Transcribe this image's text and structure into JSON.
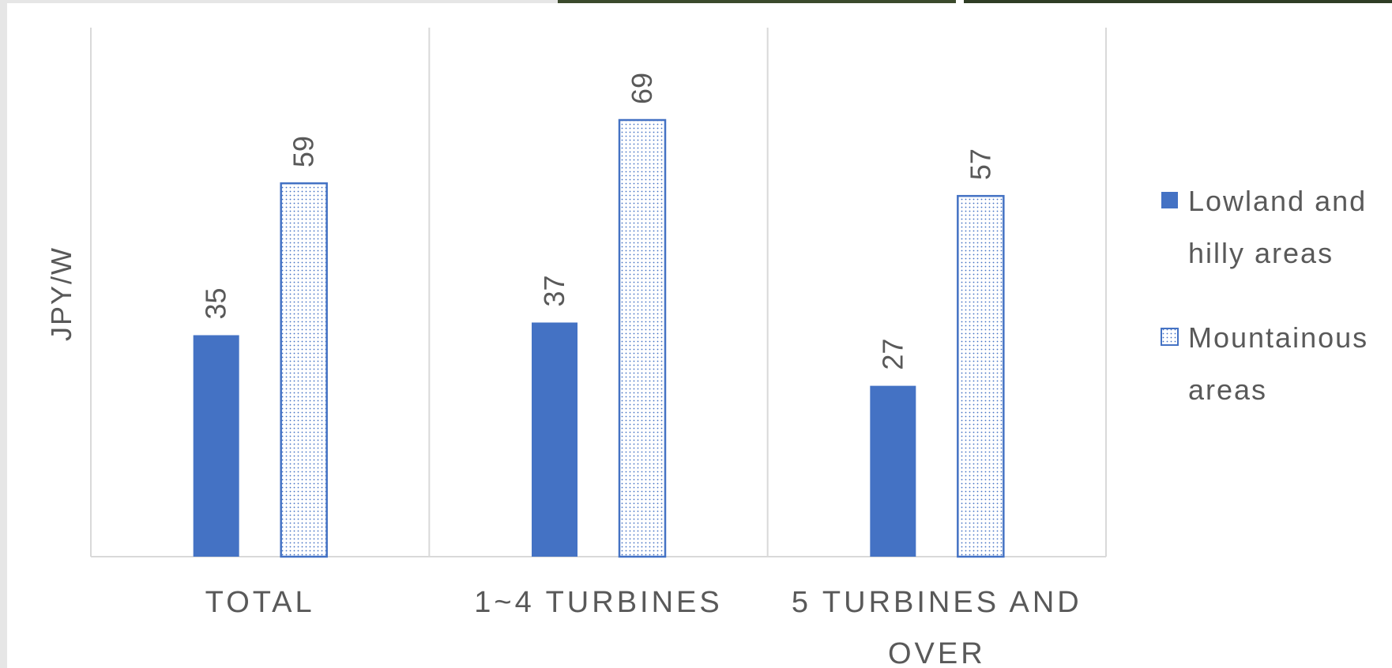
{
  "chart_data": {
    "type": "bar",
    "title": "",
    "xlabel": "",
    "ylabel": "JPY/W",
    "categories": [
      "TOTAL",
      "1~4 TURBINES",
      "5 TURBINES AND OVER"
    ],
    "series": [
      {
        "name": "Lowland and hilly areas",
        "values": [
          35,
          37,
          27
        ],
        "color": "#4472c4",
        "pattern": "solid"
      },
      {
        "name": "Mountainous areas",
        "values": [
          59,
          69,
          57
        ],
        "color": "#4472c4",
        "pattern": "dotted"
      }
    ],
    "ylim": [
      0,
      83.6
    ],
    "grid": false,
    "category_separators": true,
    "data_labels": true,
    "legend_position": "right"
  }
}
